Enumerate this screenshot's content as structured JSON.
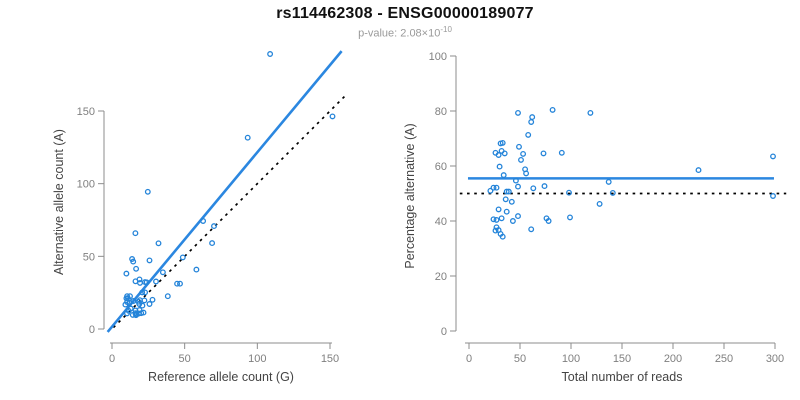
{
  "header": {
    "title": "rs114462308 - ENSG00000189077",
    "pvalue_label": "p-value: 2.08×10",
    "pvalue_exponent": "-10"
  },
  "colors": {
    "point": "#2484d9",
    "fit_line": "#2b87e0",
    "reference_line": "#000000",
    "axis": "#8c8c8c",
    "tick_label": "#7f7f7f",
    "title": "#111111",
    "subtitle": "#9a9a9a"
  },
  "chart_data": [
    {
      "type": "scatter",
      "panel": "left",
      "xlabel": "Reference allele count (G)",
      "ylabel": "Alternative allele count (A)",
      "xlim": [
        0,
        155
      ],
      "ylim": [
        0,
        193
      ],
      "xticks": [
        0,
        50,
        100,
        150
      ],
      "yticks": [
        0,
        50,
        100,
        150
      ],
      "grid": false,
      "fit_line": {
        "slope": 1.2,
        "intercept": 1.6,
        "style": "solid"
      },
      "reference_line": {
        "slope": 1,
        "intercept": 0,
        "style": "dotted"
      },
      "points": [
        [
          9.9,
          38.1
        ],
        [
          13.8,
          48.2
        ],
        [
          16.1,
          65.9
        ],
        [
          24.6,
          94.4
        ],
        [
          14.6,
          46.4
        ],
        [
          16.6,
          41.4
        ],
        [
          9.9,
          21.1
        ],
        [
          10.4,
          22.6
        ],
        [
          16.2,
          32.8
        ],
        [
          9.2,
          16.8
        ],
        [
          10.4,
          18.6
        ],
        [
          11.0,
          21.0
        ],
        [
          12.4,
          22.6
        ],
        [
          18.9,
          34.1
        ],
        [
          25.8,
          47.2
        ],
        [
          32.0,
          59.0
        ],
        [
          19.3,
          31.7
        ],
        [
          12.1,
          17.9
        ],
        [
          22.7,
          32.3
        ],
        [
          14.7,
          19.3
        ],
        [
          23.9,
          32.1
        ],
        [
          11.5,
          12.5
        ],
        [
          12.9,
          14.1
        ],
        [
          10.3,
          10.7
        ],
        [
          18.2,
          18.8
        ],
        [
          19.2,
          19.8
        ],
        [
          22.8,
          25.2
        ],
        [
          20.8,
          25.2
        ],
        [
          30.3,
          32.7
        ],
        [
          35.0,
          39.0
        ],
        [
          48.7,
          49.3
        ],
        [
          62.7,
          74.3
        ],
        [
          70.2,
          70.8
        ],
        [
          93.4,
          131.6
        ],
        [
          108.8,
          189.2
        ],
        [
          151.7,
          146.3
        ],
        [
          68.9,
          59.1
        ],
        [
          18.8,
          17.2
        ],
        [
          22.3,
          19.7
        ],
        [
          16.2,
          12.8
        ],
        [
          20.9,
          16.1
        ],
        [
          14.3,
          9.7
        ],
        [
          16.1,
          10.9
        ],
        [
          18.9,
          13.1
        ],
        [
          25.8,
          17.2
        ],
        [
          27.9,
          20.1
        ],
        [
          44.8,
          31.2
        ],
        [
          46.8,
          31.2
        ],
        [
          58.1,
          40.9
        ],
        [
          16.8,
          10.2
        ],
        [
          18.4,
          10.6
        ],
        [
          20.1,
          10.9
        ],
        [
          16.5,
          9.5
        ],
        [
          38.4,
          22.6
        ],
        [
          21.7,
          11.3
        ]
      ]
    },
    {
      "type": "scatter",
      "panel": "right",
      "xlabel": "Total number of reads",
      "ylabel": "Percentage alternative (A)",
      "xlim": [
        0,
        300
      ],
      "ylim": [
        0,
        100
      ],
      "xticks": [
        0,
        50,
        100,
        150,
        200,
        250,
        300
      ],
      "yticks": [
        0,
        20,
        40,
        60,
        80,
        100
      ],
      "grid": false,
      "fit_line": {
        "y": 55.5,
        "style": "solid"
      },
      "reference_line": {
        "y": 50,
        "style": "dotted"
      },
      "points": [
        [
          48,
          79.3
        ],
        [
          62,
          77.8
        ],
        [
          82,
          80.4
        ],
        [
          119,
          79.3
        ],
        [
          61,
          76.0
        ],
        [
          58,
          71.3
        ],
        [
          31,
          68.2
        ],
        [
          33,
          68.4
        ],
        [
          49,
          67.0
        ],
        [
          26,
          64.8
        ],
        [
          29,
          64.0
        ],
        [
          32,
          65.5
        ],
        [
          35,
          64.6
        ],
        [
          53,
          64.4
        ],
        [
          73,
          64.6
        ],
        [
          91,
          64.8
        ],
        [
          51,
          62.2
        ],
        [
          30,
          59.8
        ],
        [
          55,
          58.8
        ],
        [
          34,
          56.7
        ],
        [
          56,
          57.3
        ],
        [
          24,
          52.1
        ],
        [
          27,
          52.1
        ],
        [
          21,
          51.0
        ],
        [
          37,
          50.7
        ],
        [
          39,
          50.7
        ],
        [
          48,
          52.5
        ],
        [
          46,
          54.7
        ],
        [
          63,
          51.9
        ],
        [
          74,
          52.7
        ],
        [
          98,
          50.3
        ],
        [
          137,
          54.2
        ],
        [
          141,
          50.2
        ],
        [
          225,
          58.5
        ],
        [
          298,
          63.5
        ],
        [
          298,
          49.1
        ],
        [
          128,
          46.2
        ],
        [
          36,
          47.9
        ],
        [
          42,
          47.0
        ],
        [
          29,
          44.2
        ],
        [
          37,
          43.4
        ],
        [
          24,
          40.6
        ],
        [
          27,
          40.4
        ],
        [
          32,
          41.0
        ],
        [
          43,
          40.0
        ],
        [
          48,
          41.8
        ],
        [
          76,
          41.0
        ],
        [
          78,
          40.0
        ],
        [
          99,
          41.3
        ],
        [
          27,
          37.7
        ],
        [
          29,
          36.7
        ],
        [
          31,
          35.3
        ],
        [
          26,
          36.5
        ],
        [
          61,
          37.0
        ],
        [
          33,
          34.3
        ]
      ]
    }
  ]
}
